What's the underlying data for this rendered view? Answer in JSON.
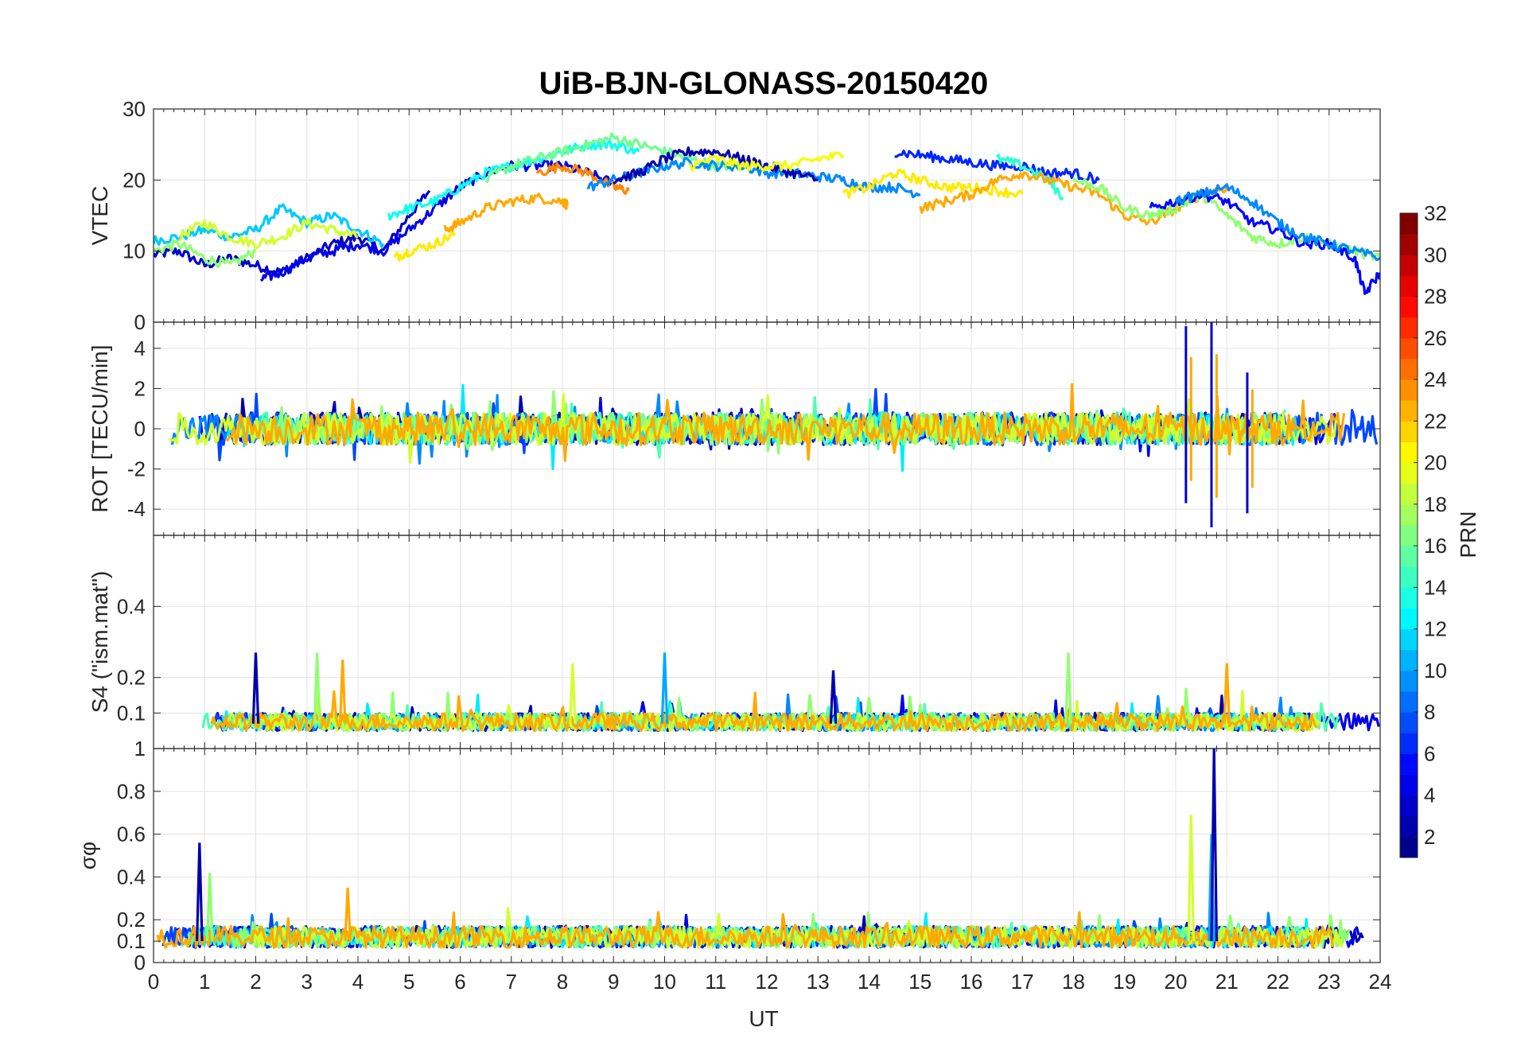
{
  "figure_title": "UiB-BJN-GLONASS-20150420",
  "x_axis": {
    "label": "UT",
    "ticks": [
      "0",
      "1",
      "2",
      "3",
      "4",
      "5",
      "6",
      "7",
      "8",
      "9",
      "10",
      "11",
      "12",
      "13",
      "14",
      "15",
      "16",
      "17",
      "18",
      "19",
      "20",
      "21",
      "22",
      "23",
      "24"
    ]
  },
  "colorbar": {
    "label": "PRN",
    "ticks": [
      "2",
      "4",
      "6",
      "8",
      "10",
      "12",
      "14",
      "16",
      "18",
      "20",
      "22",
      "24",
      "26",
      "28",
      "30",
      "32"
    ],
    "range": [
      1,
      32
    ],
    "colormap": [
      "#00008f",
      "#0000ff",
      "#0080ff",
      "#00ffff",
      "#80ff80",
      "#ffff00",
      "#ff8000",
      "#ff0000",
      "#800000"
    ]
  },
  "chart_data": [
    {
      "type": "line",
      "panel": "VTEC",
      "ylabel": "VTEC",
      "ylim": [
        0,
        30
      ],
      "yticks": [
        "0",
        "10",
        "20",
        "30"
      ],
      "xlim": [
        0,
        24
      ],
      "series_note": "GLONASS satellite VTEC arcs colored by PRN",
      "series": [
        {
          "prn": 3,
          "x": [
            0,
            0.5,
            1,
            1.5,
            2,
            2.5,
            3,
            3.5,
            4,
            4.5,
            5,
            5.4
          ],
          "y": [
            9.5,
            10,
            8,
            9,
            8,
            7,
            9,
            11,
            12,
            10,
            15,
            18.5
          ]
        },
        {
          "prn": 11,
          "x": [
            0,
            0.5,
            1,
            1.5,
            2,
            2.5,
            3,
            3.5,
            4,
            4.5
          ],
          "y": [
            11.5,
            12,
            13,
            12,
            13,
            16,
            14,
            15,
            13,
            11
          ]
        },
        {
          "prn": 17,
          "x": [
            0,
            0.5,
            1,
            1.5,
            2
          ],
          "y": [
            10,
            11,
            9,
            8,
            10
          ]
        },
        {
          "prn": 19,
          "x": [
            0.5,
            1,
            1.5,
            2,
            2.5,
            3,
            3.5,
            4
          ],
          "y": [
            12,
            14,
            12,
            11,
            12,
            14,
            13,
            12
          ]
        },
        {
          "prn": 4,
          "x": [
            2.1,
            2.5,
            3,
            3.5,
            4,
            4.5,
            5,
            5.5,
            6,
            6.5,
            7,
            7.5,
            8,
            8.5,
            9
          ],
          "y": [
            6,
            7,
            9,
            10,
            11,
            10,
            13,
            16,
            19,
            21,
            22,
            22,
            22,
            21,
            19.5
          ]
        },
        {
          "prn": 13,
          "x": [
            4.6,
            5,
            5.5,
            6,
            6.5,
            7,
            7.5,
            8,
            8.5,
            9,
            9.5
          ],
          "y": [
            15,
            16,
            17,
            19,
            21,
            22,
            23,
            24,
            25,
            25,
            24
          ]
        },
        {
          "prn": 21,
          "x": [
            4.7,
            5,
            5.5,
            5.9
          ],
          "y": [
            9,
            10,
            11,
            12.5
          ]
        },
        {
          "prn": 23,
          "x": [
            5.7,
            6,
            6.5,
            7,
            7.5,
            8,
            8.1
          ],
          "y": [
            13,
            14,
            16,
            17,
            17.5,
            17,
            16.5
          ]
        },
        {
          "prn": 16,
          "x": [
            6.5,
            7,
            7.5,
            8,
            8.5,
            9,
            9.5,
            10,
            10.5,
            11,
            11.5
          ],
          "y": [
            20,
            22,
            23,
            24,
            25,
            26,
            25,
            24,
            23,
            22,
            22
          ]
        },
        {
          "prn": 24,
          "x": [
            7.5,
            8,
            8.5,
            9,
            9.3
          ],
          "y": [
            21,
            22,
            21,
            19,
            18.5
          ]
        },
        {
          "prn": 9,
          "x": [
            8.5,
            9,
            9.5,
            10,
            10.5,
            11,
            11.5,
            12,
            12.5,
            13,
            13.5,
            14,
            14.5,
            15
          ],
          "y": [
            19,
            20,
            21,
            22,
            22.5,
            22,
            22,
            21,
            21,
            20.5,
            20,
            19,
            19,
            18
          ]
        },
        {
          "prn": 2,
          "x": [
            9,
            9.5,
            10,
            10.5,
            11,
            11.5,
            12,
            12.5,
            13
          ],
          "y": [
            20,
            21,
            23,
            24,
            24,
            23,
            22,
            21,
            20
          ]
        },
        {
          "prn": 20,
          "x": [
            10.5,
            11,
            11.5,
            12,
            12.5,
            13,
            13.5
          ],
          "y": [
            22,
            23,
            22,
            22,
            22,
            23,
            23.5
          ]
        },
        {
          "prn": 6,
          "x": [
            14.5,
            15,
            15.5,
            16,
            16.5,
            17,
            17.5,
            18,
            18.5
          ],
          "y": [
            24,
            23.5,
            23,
            22.5,
            22,
            22,
            21,
            21,
            20
          ]
        },
        {
          "prn": 21,
          "x": [
            13.5,
            14,
            14.5,
            15,
            15.5,
            16,
            16.5,
            17
          ],
          "y": [
            18,
            19,
            21,
            20,
            19,
            19,
            18.5,
            18
          ]
        },
        {
          "prn": 14,
          "x": [
            16.5,
            17,
            17.5,
            17.8
          ],
          "y": [
            23,
            22,
            20,
            17.5
          ]
        },
        {
          "prn": 23,
          "x": [
            15,
            15.5,
            16,
            16.5,
            17,
            17.5,
            18,
            18.5,
            19,
            19.5,
            20,
            20.5,
            21
          ],
          "y": [
            16,
            17,
            18,
            20,
            21,
            20,
            19,
            18,
            15,
            14,
            16,
            18,
            19
          ]
        },
        {
          "prn": 17,
          "x": [
            18,
            18.5,
            19,
            19.5,
            20,
            20.5,
            21,
            21.5,
            22,
            22.5,
            23,
            23.5,
            24
          ],
          "y": [
            20,
            19,
            16,
            15,
            16,
            18,
            15,
            12,
            11,
            12,
            11,
            10,
            9
          ]
        },
        {
          "prn": 5,
          "x": [
            19.5,
            20,
            20.5,
            21,
            21.5,
            22,
            22.5,
            23,
            23.5,
            23.7,
            24
          ],
          "y": [
            16,
            17,
            18,
            17,
            14,
            13,
            11,
            11,
            9,
            4,
            7
          ]
        },
        {
          "prn": 9,
          "x": [
            20,
            20.5,
            21,
            21.5,
            22,
            22.5,
            23,
            23.5,
            24
          ],
          "y": [
            17,
            18,
            19,
            17,
            14,
            12,
            11,
            10,
            9
          ]
        }
      ]
    },
    {
      "type": "line",
      "panel": "ROT",
      "ylabel": "ROT [TECU/min]",
      "ylim": [
        -5.3,
        5.3
      ],
      "yticks": [
        "-4",
        "-2",
        "0",
        "2",
        "4"
      ],
      "xlim": [
        0,
        24
      ],
      "series_note": "Rate of TEC, noise within about ±1 except strong fluctuations near 20-21 UT",
      "highlights": [
        {
          "x": 20.2,
          "min": -3.7,
          "max": 5.1
        },
        {
          "x": 20.7,
          "min": -4.9,
          "max": 5.3
        },
        {
          "x": 21.4,
          "min": -4.2,
          "max": 2.8
        }
      ]
    },
    {
      "type": "line",
      "panel": "S4",
      "ylabel": "S4 (\"ism.mat\")",
      "ylim": [
        0,
        0.6
      ],
      "yticks": [
        "0.1",
        "0.2",
        "0.4"
      ],
      "xlim": [
        0,
        24
      ],
      "series_note": "Amplitude scintillation index mostly 0.05-0.1 with spikes",
      "spikes": [
        {
          "x": 2.0,
          "y": 0.27
        },
        {
          "x": 3.2,
          "y": 0.27
        },
        {
          "x": 3.7,
          "y": 0.25
        },
        {
          "x": 8.2,
          "y": 0.24
        },
        {
          "x": 10.0,
          "y": 0.27
        },
        {
          "x": 13.3,
          "y": 0.22
        },
        {
          "x": 17.9,
          "y": 0.27
        },
        {
          "x": 21.0,
          "y": 0.24
        }
      ]
    },
    {
      "type": "line",
      "panel": "sigma_phi",
      "ylabel": "σφ",
      "ylim": [
        0,
        1
      ],
      "yticks": [
        "0",
        "0.1",
        "0.2",
        "0.4",
        "0.6",
        "0.8",
        "1"
      ],
      "xlim": [
        0,
        24
      ],
      "series_note": "Phase scintillation index mostly 0.05-0.2 with strong spikes near 20-21 UT",
      "spikes": [
        {
          "x": 0.9,
          "y": 0.56
        },
        {
          "x": 1.1,
          "y": 0.42
        },
        {
          "x": 3.8,
          "y": 0.35
        },
        {
          "x": 20.3,
          "y": 0.69
        },
        {
          "x": 20.7,
          "y": 0.6
        },
        {
          "x": 20.75,
          "y": 1.0
        }
      ]
    }
  ]
}
